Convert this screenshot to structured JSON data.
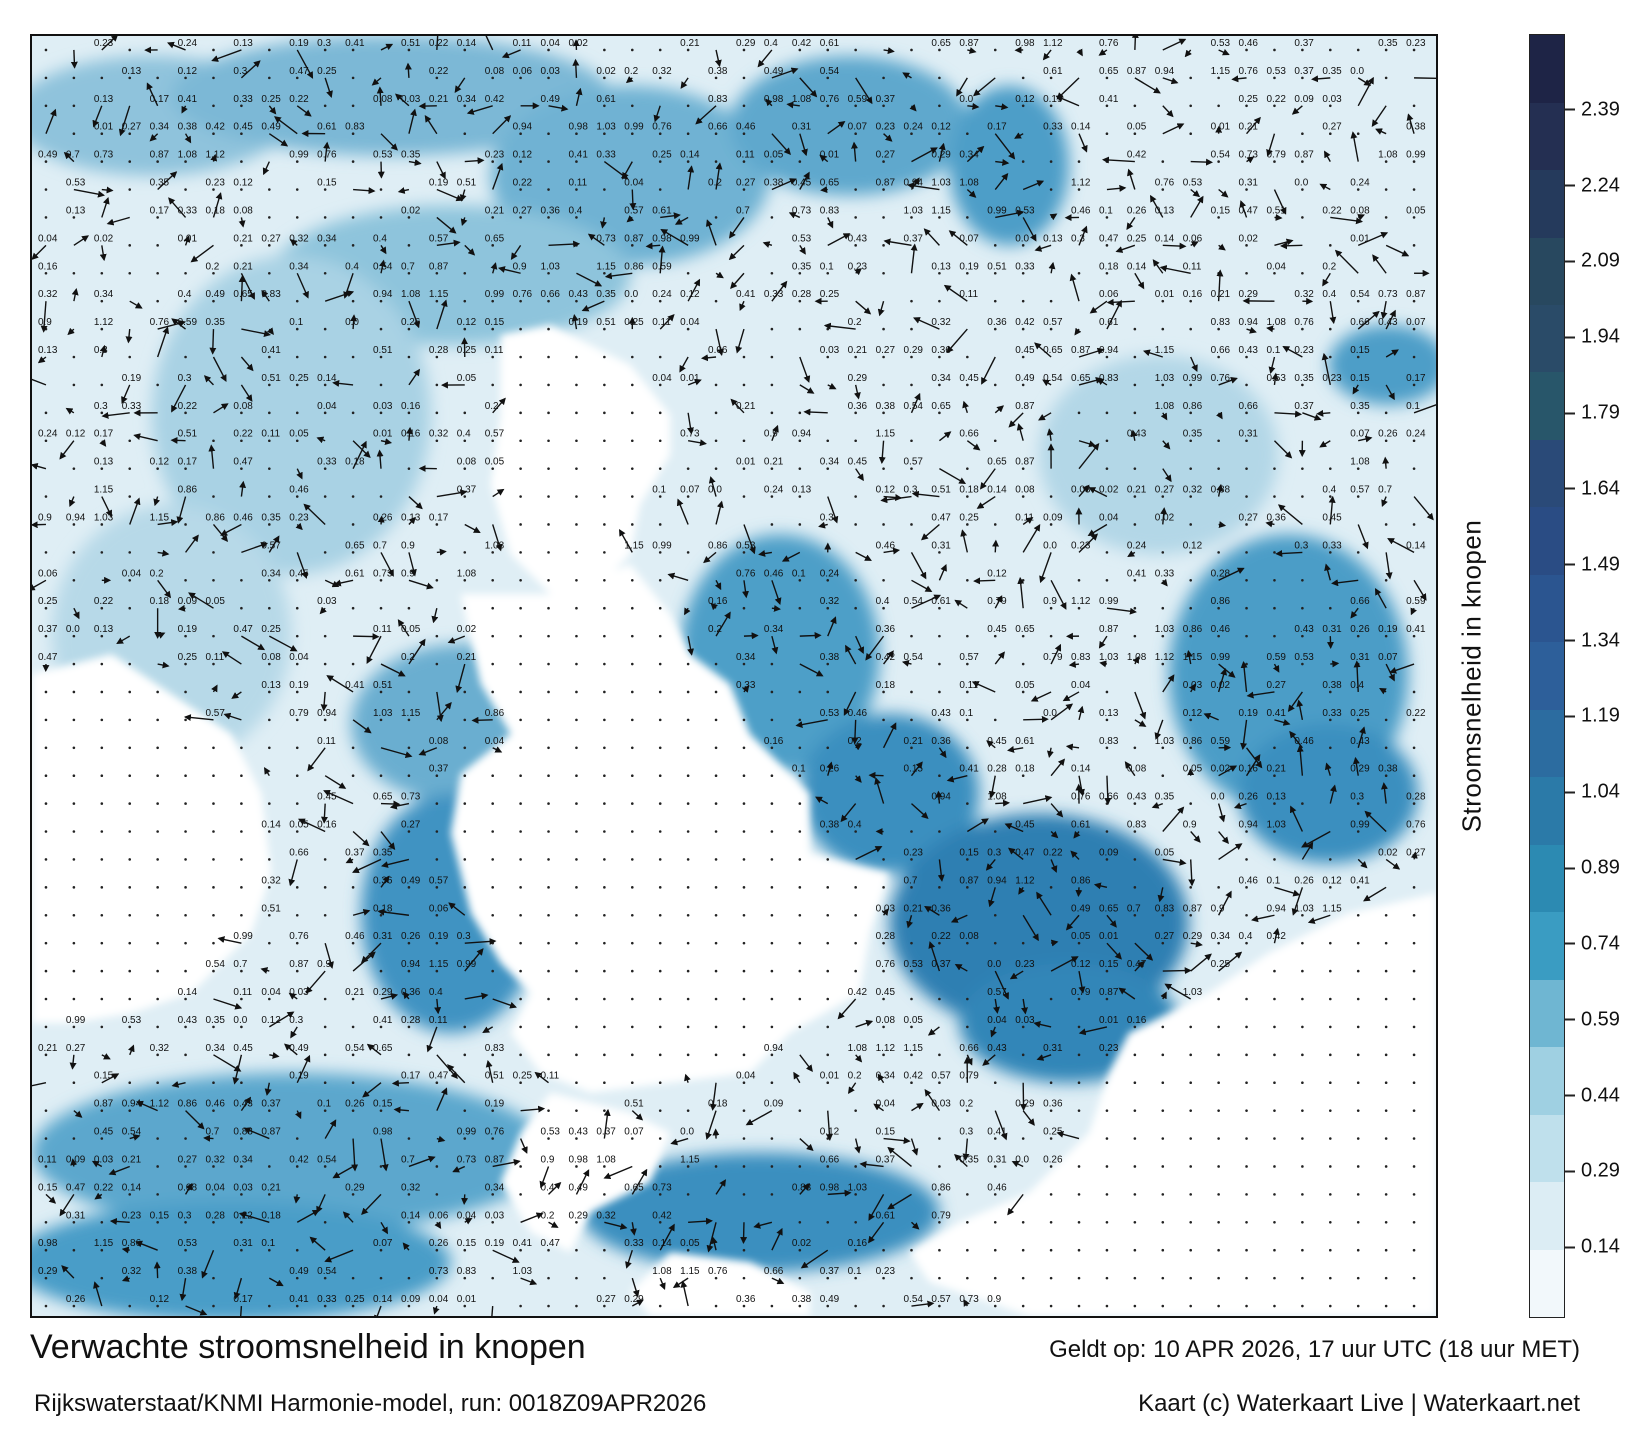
{
  "footer": {
    "title": "Verwachte stroomsnelheid in knopen",
    "subtitle": "Rijkswaterstaat/KNMI Harmonie-model, run: 0018Z09APR2026",
    "valid": "Geldt op: 10 APR 2026, 17 uur UTC (18 uur MET)",
    "credit": "Kaart (c) Waterkaart Live | Waterkaart.net"
  },
  "legend": {
    "label": "Stroomsnelheid in knopen",
    "ticks": [
      "0.14",
      "0.29",
      "0.44",
      "0.59",
      "0.74",
      "0.89",
      "1.04",
      "1.19",
      "1.34",
      "1.49",
      "1.64",
      "1.79",
      "1.94",
      "2.09",
      "2.24",
      "2.39"
    ],
    "tick_values": [
      0.14,
      0.29,
      0.44,
      0.59,
      0.74,
      0.89,
      1.04,
      1.19,
      1.34,
      1.49,
      1.64,
      1.79,
      1.94,
      2.09,
      2.24,
      2.39
    ],
    "range": [
      0,
      2.54
    ],
    "colors": [
      "#f2f8fb",
      "#dcedf4",
      "#bfe0ec",
      "#9fd0e2",
      "#6fb6d2",
      "#3a9cc2",
      "#2c8ab2",
      "#2b7aa8",
      "#2c6ca0",
      "#2d5f9a",
      "#2b5590",
      "#2a4c84",
      "#2a4a78",
      "#28566a",
      "#2a4b68",
      "#28485f",
      "#253a5c",
      "#242f52",
      "#1e2446"
    ],
    "tick_unit": "knopen"
  },
  "map": {
    "land_color": "#ffffff",
    "sea_colors": {
      "low": "#e6f1f6",
      "mid": "#5aa8ca",
      "high": "#2a74a8",
      "peak": "#245f98"
    },
    "arrow_color": "#111111",
    "visible_speed_samples": [
      "0.23",
      "0.26",
      "0.24",
      "0.13",
      "0.12",
      "0.15",
      "0.19",
      "0.17",
      "0.3",
      "0.41",
      "0.47",
      "0.51",
      "0.33",
      "0.28",
      "0.25",
      "0.22",
      "0.18",
      "0.14",
      "0.11",
      "0.09",
      "0.08",
      "0.06",
      "0.05",
      "0.04",
      "0.03",
      "0.02",
      "0.01",
      "0.16",
      "0.2",
      "0.21",
      "0.27",
      "0.29",
      "0.32",
      "0.34",
      "0.36",
      "0.38",
      "0.4",
      "0.42",
      "0.45",
      "0.49",
      "0.54",
      "0.57",
      "0.61",
      "0.65",
      "0.7",
      "0.73",
      "0.79",
      "0.83",
      "0.87",
      "0.9",
      "0.94",
      "0.98",
      "1.03",
      "1.08",
      "1.12",
      "1.15",
      "0.99",
      "0.86",
      "0.76",
      "0.66",
      "0.59",
      "0.53",
      "0.46",
      "0.43",
      "0.37",
      "0.35",
      "0.31",
      "0.1",
      "0.07",
      "0.0"
    ]
  }
}
